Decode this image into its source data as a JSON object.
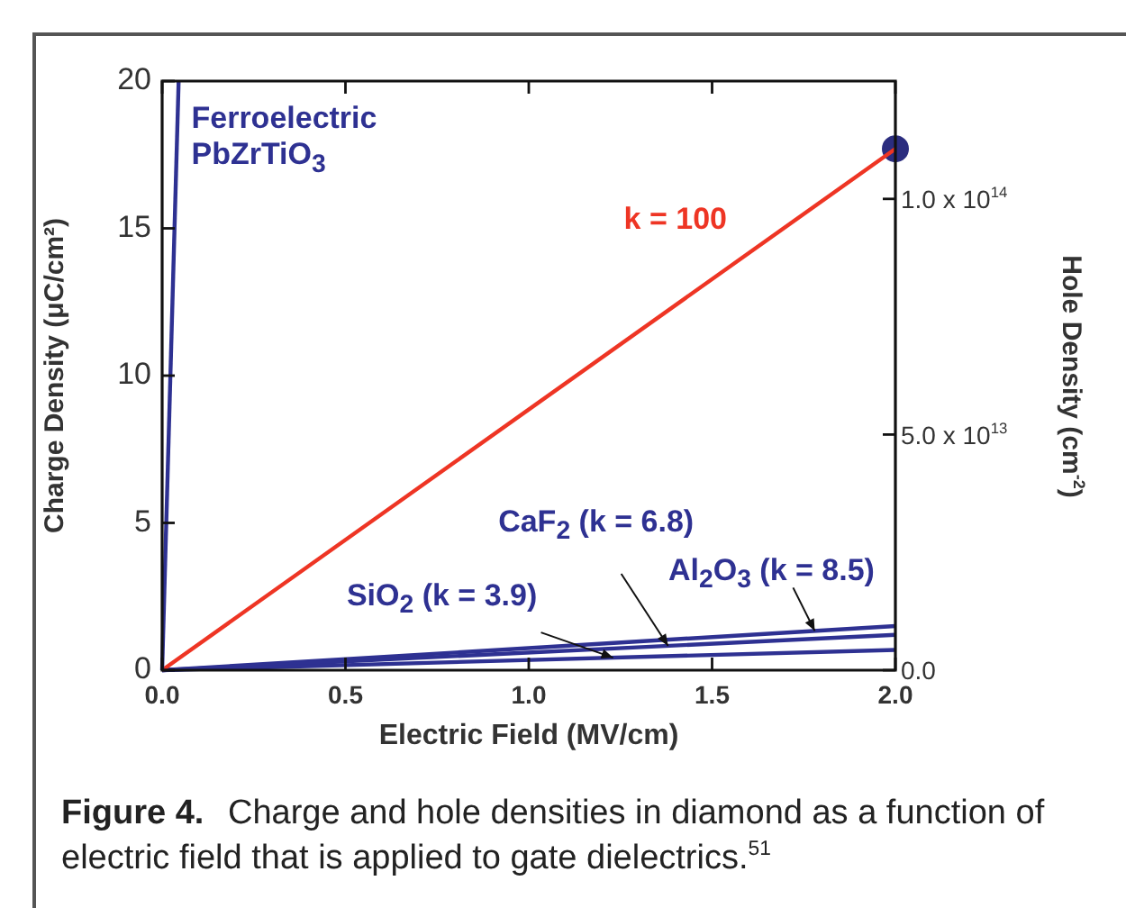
{
  "chart_data": {
    "type": "line",
    "xlabel": "Electric Field (MV/cm)",
    "ylabel": "Charge Density (μC/cm²)",
    "y2label": "Hole Density (cm$^{-2}$)",
    "xlim": [
      0,
      2
    ],
    "xticks": [
      {
        "value": 0,
        "label": "0.0"
      },
      {
        "value": 0.5,
        "label": "0.5"
      },
      {
        "value": 1,
        "label": "1.0"
      },
      {
        "value": 1.5,
        "label": "1.5"
      },
      {
        "value": 2,
        "label": "2.0"
      }
    ],
    "ylim": [
      0,
      20
    ],
    "yticks": [
      0,
      5,
      10,
      15,
      20
    ],
    "y2lim": [
      0,
      125000000000000
    ],
    "y2ticks": [
      {
        "value": 0,
        "label": "0.0"
      },
      {
        "value": 50000000000000,
        "label": "5.0 x 10$^{13}$"
      },
      {
        "value": 100000000000000,
        "label": "1.0 x 10$^{14}$"
      }
    ],
    "marker": "none",
    "grid": false,
    "legend": false,
    "series": [
      {
        "name": "Ferroelectric PbZrTiO$_{3}$",
        "color": "#2e3192",
        "x": [
          0,
          0.045
        ],
        "values": [
          0,
          20
        ]
      },
      {
        "name": "k = 100",
        "color": "#ee3524",
        "x": [
          0,
          2
        ],
        "values": [
          0,
          17.7
        ]
      },
      {
        "name": "SiO$_{2}$ (k = 3.9)",
        "color": "#2e3192",
        "x": [
          0,
          2
        ],
        "values": [
          0,
          0.69
        ]
      },
      {
        "name": "CaF$_{2}$ (k = 6.8)",
        "color": "#2e3192",
        "x": [
          0,
          2
        ],
        "values": [
          0,
          1.2
        ]
      },
      {
        "name": "Al$_{2}$O$_{3}$ (k = 8.5)",
        "color": "#2e3192",
        "x": [
          0,
          2
        ],
        "values": [
          0,
          1.5
        ]
      },
      {
        "type": "scatter",
        "marker": "circle",
        "color": "#2b2d7f",
        "x": [
          2
        ],
        "values": [
          17.7
        ]
      }
    ],
    "annotations": [
      "Figure 4.",
      "Charge and hole densities in diamond as a function of electric field that is applied to gate dielectrics.$^{51}$"
    ]
  }
}
